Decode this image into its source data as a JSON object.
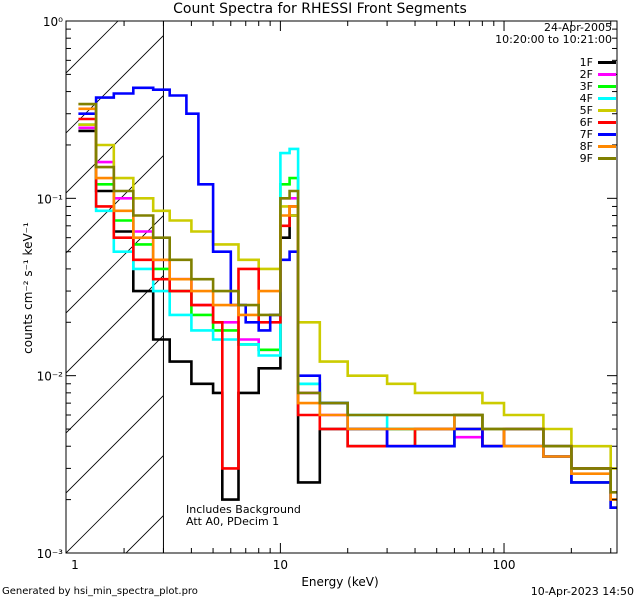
{
  "chart_data": {
    "type": "line",
    "title": "Count Spectra for RHESSI Front Segments",
    "xlabel": "Energy (keV)",
    "ylabel": "counts cm⁻² s⁻¹ keV⁻¹",
    "xscale": "log",
    "yscale": "log",
    "xlim": [
      1.1,
      320
    ],
    "ylim": [
      0.001,
      1.0
    ],
    "x_ticks": [
      {
        "value": 1,
        "label": "1"
      },
      {
        "value": 10,
        "label": "10"
      },
      {
        "value": 100,
        "label": "100"
      }
    ],
    "y_ticks": [
      {
        "value": 0.001,
        "label": "10⁻³"
      },
      {
        "value": 0.01,
        "label": "10⁻²"
      },
      {
        "value": 0.1,
        "label": "10⁻¹"
      },
      {
        "value": 1,
        "label": "10⁰"
      }
    ],
    "excluded_region": {
      "xmin": 1.1,
      "xmax": 3.0,
      "style": "hatched"
    },
    "series": [
      {
        "name": "1F",
        "color": "#000000",
        "points": [
          [
            1.25,
            0.24
          ],
          [
            1.5,
            0.11
          ],
          [
            1.8,
            0.065
          ],
          [
            2.2,
            0.03
          ],
          [
            2.7,
            0.016
          ],
          [
            3.2,
            0.012
          ],
          [
            4,
            0.009
          ],
          [
            5,
            0.008
          ],
          [
            5.5,
            0.002
          ],
          [
            6.5,
            0.008
          ],
          [
            8,
            0.011
          ],
          [
            10,
            0.06
          ],
          [
            11,
            0.08
          ],
          [
            12,
            0.0025
          ],
          [
            15,
            0.005
          ],
          [
            20,
            0.004
          ],
          [
            30,
            0.005
          ],
          [
            40,
            0.005
          ],
          [
            60,
            0.006
          ],
          [
            80,
            0.004
          ],
          [
            100,
            0.005
          ],
          [
            150,
            0.004
          ],
          [
            200,
            0.003
          ],
          [
            300,
            0.002
          ]
        ]
      },
      {
        "name": "2F",
        "color": "#ff00ff",
        "points": [
          [
            1.25,
            0.25
          ],
          [
            1.5,
            0.16
          ],
          [
            1.8,
            0.1
          ],
          [
            2.2,
            0.065
          ],
          [
            2.7,
            0.045
          ],
          [
            3.2,
            0.035
          ],
          [
            4,
            0.025
          ],
          [
            5,
            0.02
          ],
          [
            6.5,
            0.016
          ],
          [
            8,
            0.014
          ],
          [
            10,
            0.1
          ],
          [
            11,
            0.1
          ],
          [
            12,
            0.008
          ],
          [
            15,
            0.006
          ],
          [
            20,
            0.005
          ],
          [
            30,
            0.004
          ],
          [
            40,
            0.004
          ],
          [
            60,
            0.0045
          ],
          [
            80,
            0.005
          ],
          [
            100,
            0.004
          ],
          [
            150,
            0.0035
          ],
          [
            200,
            0.0025
          ],
          [
            300,
            0.0018
          ]
        ]
      },
      {
        "name": "3F",
        "color": "#00ff00",
        "points": [
          [
            1.25,
            0.26
          ],
          [
            1.5,
            0.12
          ],
          [
            1.8,
            0.075
          ],
          [
            2.2,
            0.055
          ],
          [
            2.7,
            0.04
          ],
          [
            3.2,
            0.03
          ],
          [
            4,
            0.022
          ],
          [
            5,
            0.018
          ],
          [
            6.5,
            0.015
          ],
          [
            8,
            0.014
          ],
          [
            10,
            0.12
          ],
          [
            11,
            0.13
          ],
          [
            12,
            0.009
          ],
          [
            15,
            0.007
          ],
          [
            20,
            0.005
          ],
          [
            30,
            0.005
          ],
          [
            40,
            0.004
          ],
          [
            60,
            0.005
          ],
          [
            80,
            0.005
          ],
          [
            100,
            0.004
          ],
          [
            150,
            0.0035
          ],
          [
            200,
            0.0025
          ],
          [
            300,
            0.0018
          ]
        ]
      },
      {
        "name": "4F",
        "color": "#00ffff",
        "points": [
          [
            1.25,
            0.26
          ],
          [
            1.5,
            0.085
          ],
          [
            1.8,
            0.05
          ],
          [
            2.2,
            0.04
          ],
          [
            2.7,
            0.03
          ],
          [
            3.2,
            0.022
          ],
          [
            4,
            0.018
          ],
          [
            5,
            0.016
          ],
          [
            6.5,
            0.015
          ],
          [
            8,
            0.013
          ],
          [
            10,
            0.18
          ],
          [
            11,
            0.19
          ],
          [
            12,
            0.009
          ],
          [
            15,
            0.007
          ],
          [
            20,
            0.006
          ],
          [
            30,
            0.005
          ],
          [
            40,
            0.005
          ],
          [
            60,
            0.006
          ],
          [
            80,
            0.005
          ],
          [
            100,
            0.005
          ],
          [
            150,
            0.004
          ],
          [
            200,
            0.003
          ],
          [
            300,
            0.002
          ]
        ]
      },
      {
        "name": "5F",
        "color": "#cccc00",
        "points": [
          [
            1.25,
            0.26
          ],
          [
            1.5,
            0.2
          ],
          [
            1.8,
            0.13
          ],
          [
            2.2,
            0.1
          ],
          [
            2.7,
            0.085
          ],
          [
            3.2,
            0.075
          ],
          [
            4,
            0.065
          ],
          [
            5,
            0.055
          ],
          [
            6.5,
            0.045
          ],
          [
            8,
            0.04
          ],
          [
            10,
            0.09
          ],
          [
            11,
            0.08
          ],
          [
            12,
            0.02
          ],
          [
            15,
            0.012
          ],
          [
            20,
            0.01
          ],
          [
            30,
            0.009
          ],
          [
            40,
            0.008
          ],
          [
            60,
            0.008
          ],
          [
            80,
            0.007
          ],
          [
            100,
            0.006
          ],
          [
            150,
            0.005
          ],
          [
            200,
            0.004
          ],
          [
            300,
            0.003
          ]
        ]
      },
      {
        "name": "6F",
        "color": "#ff0000",
        "points": [
          [
            1.25,
            0.28
          ],
          [
            1.5,
            0.09
          ],
          [
            1.8,
            0.06
          ],
          [
            2.2,
            0.045
          ],
          [
            2.7,
            0.035
          ],
          [
            3.2,
            0.03
          ],
          [
            4,
            0.025
          ],
          [
            5,
            0.02
          ],
          [
            5.5,
            0.003
          ],
          [
            6.5,
            0.04
          ],
          [
            8,
            0.02
          ],
          [
            10,
            0.07
          ],
          [
            11,
            0.09
          ],
          [
            12,
            0.006
          ],
          [
            15,
            0.005
          ],
          [
            20,
            0.004
          ],
          [
            30,
            0.004
          ],
          [
            40,
            0.005
          ],
          [
            60,
            0.005
          ],
          [
            80,
            0.004
          ],
          [
            100,
            0.005
          ],
          [
            150,
            0.004
          ],
          [
            200,
            0.003
          ],
          [
            300,
            0.002
          ]
        ]
      },
      {
        "name": "7F",
        "color": "#0000ff",
        "points": [
          [
            1.25,
            0.3
          ],
          [
            1.5,
            0.37
          ],
          [
            1.8,
            0.39
          ],
          [
            2.2,
            0.42
          ],
          [
            2.7,
            0.41
          ],
          [
            3.2,
            0.38
          ],
          [
            3.8,
            0.3
          ],
          [
            4.3,
            0.12
          ],
          [
            5,
            0.05
          ],
          [
            6,
            0.025
          ],
          [
            7,
            0.02
          ],
          [
            8,
            0.018
          ],
          [
            9,
            0.022
          ],
          [
            10,
            0.045
          ],
          [
            11,
            0.05
          ],
          [
            12,
            0.01
          ],
          [
            15,
            0.007
          ],
          [
            20,
            0.005
          ],
          [
            30,
            0.004
          ],
          [
            40,
            0.004
          ],
          [
            60,
            0.005
          ],
          [
            80,
            0.004
          ],
          [
            100,
            0.004
          ],
          [
            150,
            0.0035
          ],
          [
            200,
            0.0025
          ],
          [
            300,
            0.0018
          ]
        ]
      },
      {
        "name": "8F",
        "color": "#ff8800",
        "points": [
          [
            1.25,
            0.32
          ],
          [
            1.5,
            0.13
          ],
          [
            1.8,
            0.085
          ],
          [
            2.2,
            0.06
          ],
          [
            2.7,
            0.045
          ],
          [
            3.2,
            0.035
          ],
          [
            4,
            0.03
          ],
          [
            5,
            0.025
          ],
          [
            6.5,
            0.022
          ],
          [
            8,
            0.03
          ],
          [
            10,
            0.08
          ],
          [
            11,
            0.09
          ],
          [
            12,
            0.007
          ],
          [
            15,
            0.006
          ],
          [
            20,
            0.005
          ],
          [
            30,
            0.005
          ],
          [
            40,
            0.005
          ],
          [
            60,
            0.006
          ],
          [
            80,
            0.005
          ],
          [
            100,
            0.004
          ],
          [
            150,
            0.0035
          ],
          [
            200,
            0.0028
          ],
          [
            300,
            0.002
          ]
        ]
      },
      {
        "name": "9F",
        "color": "#808000",
        "points": [
          [
            1.25,
            0.34
          ],
          [
            1.5,
            0.15
          ],
          [
            1.8,
            0.11
          ],
          [
            2.2,
            0.08
          ],
          [
            2.7,
            0.06
          ],
          [
            3.2,
            0.045
          ],
          [
            4,
            0.035
          ],
          [
            5,
            0.03
          ],
          [
            6.5,
            0.025
          ],
          [
            8,
            0.022
          ],
          [
            10,
            0.1
          ],
          [
            11,
            0.11
          ],
          [
            12,
            0.008
          ],
          [
            15,
            0.007
          ],
          [
            20,
            0.006
          ],
          [
            30,
            0.006
          ],
          [
            40,
            0.006
          ],
          [
            60,
            0.006
          ],
          [
            80,
            0.005
          ],
          [
            100,
            0.005
          ],
          [
            150,
            0.004
          ],
          [
            200,
            0.003
          ],
          [
            300,
            0.0022
          ]
        ]
      }
    ]
  },
  "info": {
    "date": "24-Apr-2005",
    "time_range": "10:20:00 to 10:21:00"
  },
  "note": {
    "line1": "Includes Background",
    "line2": "Att A0, PDecim 1"
  },
  "footer": {
    "left": "Generated by hsi_min_spectra_plot.pro",
    "right": "10-Apr-2023 14:50"
  }
}
